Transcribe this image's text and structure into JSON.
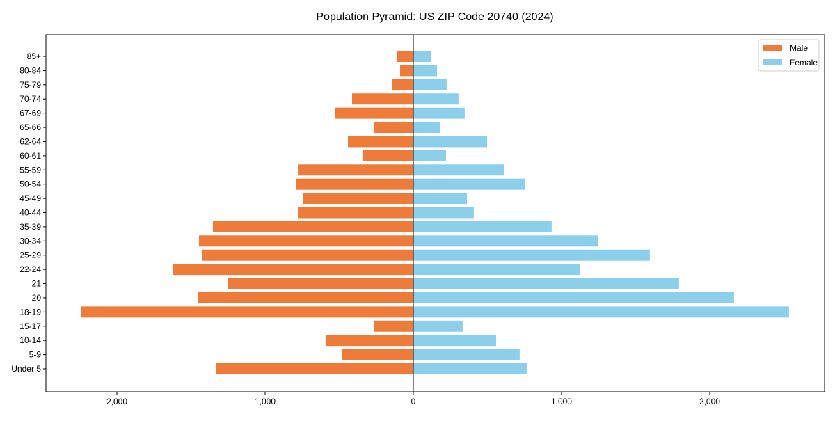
{
  "chart_data": {
    "type": "bar",
    "orientation": "horizontal",
    "title": "Population Pyramid: US ZIP Code 20740 (2024)",
    "xlabel": "",
    "ylabel": "",
    "xlim": [
      -2479,
      2775
    ],
    "xticks": [
      -2000,
      -1000,
      0,
      1000,
      2000
    ],
    "xtick_labels": [
      "2,000",
      "1,000",
      "0",
      "1,000",
      "2,000"
    ],
    "grid": false,
    "legend_position": "top-right",
    "categories": [
      "85+",
      "80-84",
      "75-79",
      "70-74",
      "67-69",
      "65-66",
      "62-64",
      "60-61",
      "55-59",
      "50-54",
      "45-49",
      "40-44",
      "35-39",
      "30-34",
      "25-29",
      "22-24",
      "21",
      "20",
      "18-19",
      "15-17",
      "10-14",
      "5-9",
      "Under 5"
    ],
    "series": [
      {
        "name": "Male",
        "color": "#ee7b3a",
        "values": [
          113,
          89,
          141,
          413,
          530,
          268,
          441,
          343,
          779,
          789,
          742,
          779,
          1352,
          1446,
          1423,
          1620,
          1249,
          1451,
          2244,
          263,
          592,
          479,
          1333
        ]
      },
      {
        "name": "Female",
        "color": "#8ccfea",
        "values": [
          122,
          160,
          225,
          305,
          347,
          183,
          498,
          221,
          615,
          756,
          362,
          408,
          934,
          1249,
          1596,
          1127,
          1793,
          2164,
          2535,
          333,
          559,
          718,
          765
        ]
      }
    ]
  }
}
